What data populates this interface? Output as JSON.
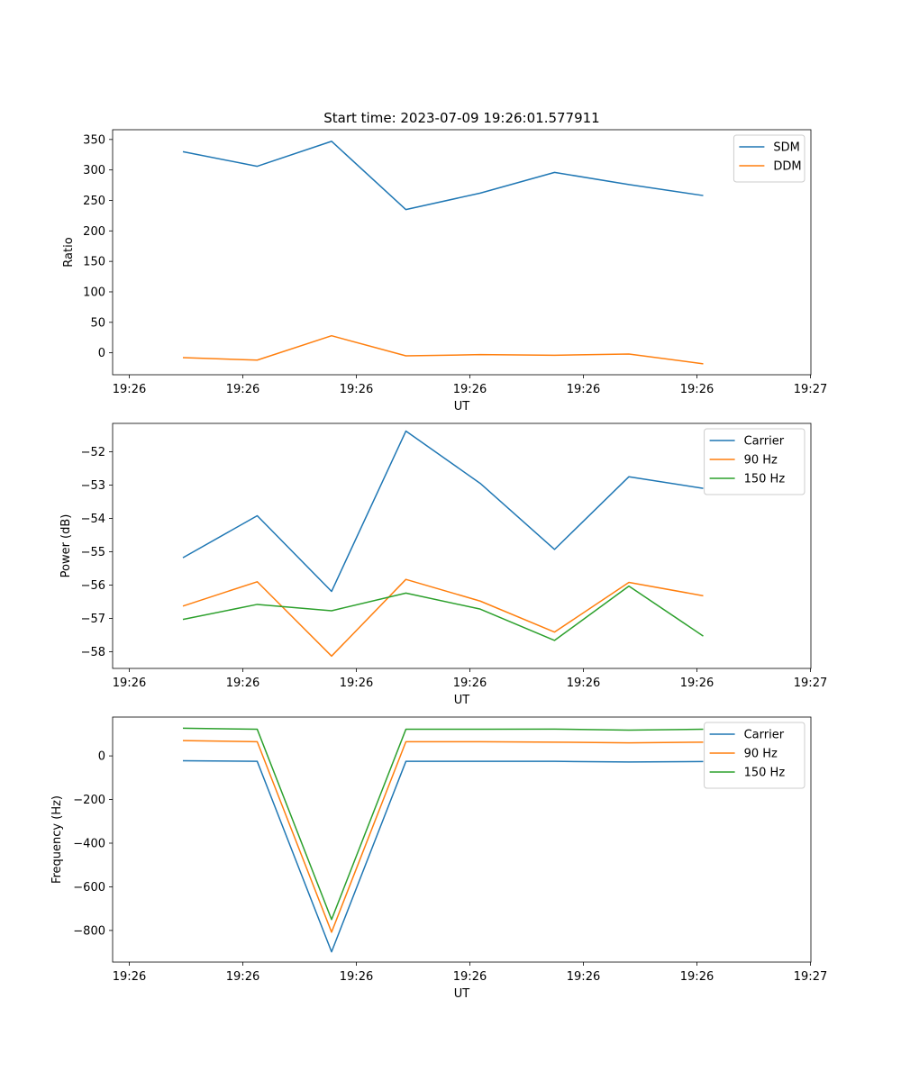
{
  "figure": {
    "title": "Start time: 2023-07-09 19:26:01.577911"
  },
  "chart_data": [
    {
      "type": "line",
      "title": "Start time: 2023-07-09 19:26:01.577911",
      "xlabel": "UT",
      "ylabel": "Ratio",
      "xticklabels": [
        "19:26",
        "19:26",
        "19:26",
        "19:26",
        "19:26",
        "19:26",
        "19:27"
      ],
      "yticks": [
        0,
        50,
        100,
        150,
        200,
        250,
        300,
        350
      ],
      "ylim": [
        -36,
        366
      ],
      "legend": "upper right",
      "series": [
        {
          "name": "SDM",
          "color": "#1f77b4",
          "values": [
            330,
            306,
            347,
            235,
            262,
            296,
            276,
            258
          ]
        },
        {
          "name": "DDM",
          "color": "#ff7f0e",
          "values": [
            -8,
            -12,
            28,
            -5,
            -3,
            -4,
            -2,
            -18
          ]
        }
      ]
    },
    {
      "type": "line",
      "title": "",
      "xlabel": "UT",
      "ylabel": "Power (dB)",
      "xticklabels": [
        "19:26",
        "19:26",
        "19:26",
        "19:26",
        "19:26",
        "19:26",
        "19:27"
      ],
      "yticks": [
        -58,
        -57,
        -56,
        -55,
        -54,
        -53,
        -52
      ],
      "ylim": [
        -58.5,
        -51.15
      ],
      "legend": "upper right",
      "series": [
        {
          "name": "Carrier",
          "color": "#1f77b4",
          "values": [
            -55.18,
            -53.92,
            -56.19,
            -51.38,
            -52.95,
            -54.93,
            -52.75,
            -53.1
          ]
        },
        {
          "name": "90 Hz",
          "color": "#ff7f0e",
          "values": [
            -56.63,
            -55.9,
            -58.13,
            -55.83,
            -56.48,
            -57.41,
            -55.92,
            -56.32
          ]
        },
        {
          "name": "150 Hz",
          "color": "#2ca02c",
          "values": [
            -57.03,
            -56.58,
            -56.77,
            -56.24,
            -56.72,
            -57.66,
            -56.03,
            -57.53
          ]
        }
      ]
    },
    {
      "type": "line",
      "title": "",
      "xlabel": "UT",
      "ylabel": "Frequency (Hz)",
      "xticklabels": [
        "19:26",
        "19:26",
        "19:26",
        "19:26",
        "19:26",
        "19:26",
        "19:27"
      ],
      "yticks": [
        -800,
        -600,
        -400,
        -200,
        0
      ],
      "ylim": [
        -945,
        178
      ],
      "legend": "upper right",
      "series": [
        {
          "name": "Carrier",
          "color": "#1f77b4",
          "values": [
            -22,
            -25,
            -898,
            -25,
            -25,
            -25,
            -28,
            -26
          ]
        },
        {
          "name": "90 Hz",
          "color": "#ff7f0e",
          "values": [
            70,
            65,
            -808,
            65,
            65,
            63,
            60,
            63
          ]
        },
        {
          "name": "150 Hz",
          "color": "#2ca02c",
          "values": [
            127,
            122,
            -750,
            122,
            122,
            123,
            118,
            122
          ]
        }
      ]
    }
  ]
}
